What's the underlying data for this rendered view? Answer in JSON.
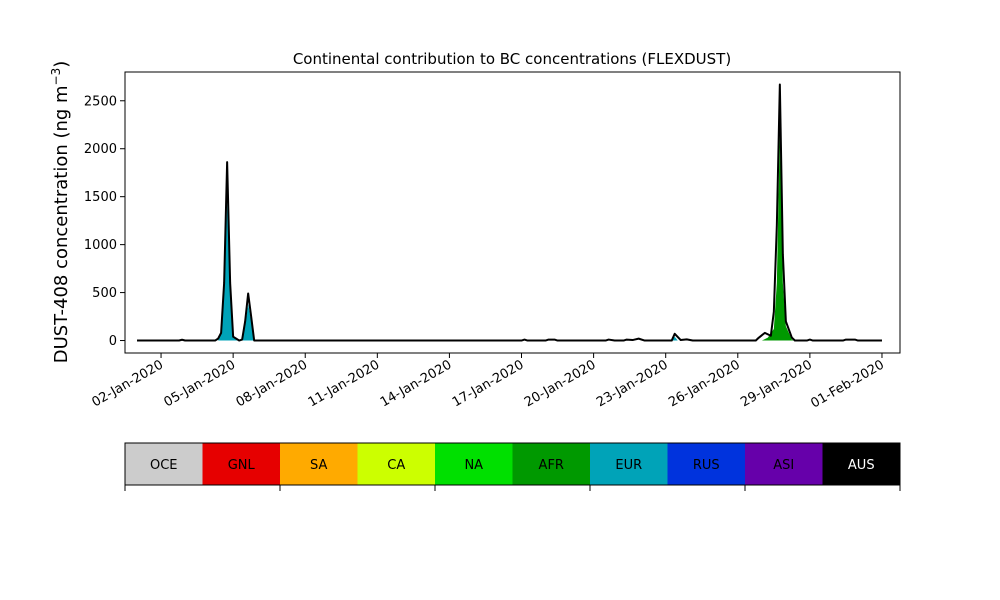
{
  "chart_data": {
    "type": "area",
    "title": "Continental contribution to BC concentrations (FLEXDUST)",
    "ylabel": "DUST-408 concentration (ng m",
    "ylabel_sup": "−3",
    "ylabel_end": ")",
    "xlabel": "",
    "ylim": [
      -130,
      2800
    ],
    "xlim": [
      "2019-12-31T12:00",
      "2020-02-01T18:00"
    ],
    "yticks": [
      0,
      500,
      1000,
      1500,
      2000,
      2500
    ],
    "xticks": [
      {
        "date": "2020-01-02",
        "label": "02-Jan-2020"
      },
      {
        "date": "2020-01-05",
        "label": "05-Jan-2020"
      },
      {
        "date": "2020-01-08",
        "label": "08-Jan-2020"
      },
      {
        "date": "2020-01-11",
        "label": "11-Jan-2020"
      },
      {
        "date": "2020-01-14",
        "label": "14-Jan-2020"
      },
      {
        "date": "2020-01-17",
        "label": "17-Jan-2020"
      },
      {
        "date": "2020-01-20",
        "label": "20-Jan-2020"
      },
      {
        "date": "2020-01-23",
        "label": "23-Jan-2020"
      },
      {
        "date": "2020-01-26",
        "label": "26-Jan-2020"
      },
      {
        "date": "2020-01-29",
        "label": "29-Jan-2020"
      },
      {
        "date": "2020-02-01",
        "label": "01-Feb-2020"
      }
    ],
    "legend": [
      {
        "name": "OCE",
        "color": "#cccccc",
        "text_color": "#000000"
      },
      {
        "name": "GNL",
        "color": "#e60000",
        "text_color": "#000000"
      },
      {
        "name": "SA",
        "color": "#ffaa00",
        "text_color": "#000000"
      },
      {
        "name": "CA",
        "color": "#ccff00",
        "text_color": "#000000"
      },
      {
        "name": "NA",
        "color": "#00e000",
        "text_color": "#000000"
      },
      {
        "name": "AFR",
        "color": "#009900",
        "text_color": "#000000"
      },
      {
        "name": "EUR",
        "color": "#00a3b8",
        "text_color": "#000000"
      },
      {
        "name": "RUS",
        "color": "#0033dd",
        "text_color": "#000000"
      },
      {
        "name": "ASI",
        "color": "#6600aa",
        "text_color": "#000000"
      },
      {
        "name": "AUS",
        "color": "#000000",
        "text_color": "#ffffff"
      }
    ],
    "series": [
      {
        "name": "EUR",
        "color": "#00a3b8",
        "points": [
          [
            "2020-01-01T00:00",
            0
          ],
          [
            "2020-01-04T09:00",
            0
          ],
          [
            "2020-01-04T12:00",
            80
          ],
          [
            "2020-01-04T15:00",
            500
          ],
          [
            "2020-01-04T18:00",
            1450
          ],
          [
            "2020-01-04T21:00",
            550
          ],
          [
            "2020-01-05T00:00",
            30
          ],
          [
            "2020-01-05T09:00",
            0
          ],
          [
            "2020-01-05T12:00",
            150
          ],
          [
            "2020-01-05T15:00",
            380
          ],
          [
            "2020-01-05T18:00",
            200
          ],
          [
            "2020-01-05T21:00",
            0
          ],
          [
            "2020-01-23T06:00",
            0
          ],
          [
            "2020-01-23T09:00",
            40
          ],
          [
            "2020-01-23T12:00",
            0
          ],
          [
            "2020-02-01T00:00",
            0
          ]
        ]
      },
      {
        "name": "AFR",
        "color": "#009900",
        "points": [
          [
            "2020-01-01T00:00",
            0
          ],
          [
            "2020-01-27T00:00",
            0
          ],
          [
            "2020-01-27T06:00",
            30
          ],
          [
            "2020-01-27T12:00",
            120
          ],
          [
            "2020-01-27T15:00",
            600
          ],
          [
            "2020-01-27T18:00",
            2200
          ],
          [
            "2020-01-27T21:00",
            600
          ],
          [
            "2020-01-28T00:00",
            150
          ],
          [
            "2020-01-28T06:00",
            10
          ],
          [
            "2020-01-28T09:00",
            0
          ],
          [
            "2020-02-01T00:00",
            0
          ]
        ]
      }
    ],
    "total": [
      [
        "2020-01-01T00:00",
        0
      ],
      [
        "2020-01-02T18:00",
        0
      ],
      [
        "2020-01-02T21:00",
        8
      ],
      [
        "2020-01-03T00:00",
        0
      ],
      [
        "2020-01-04T06:00",
        0
      ],
      [
        "2020-01-04T09:00",
        20
      ],
      [
        "2020-01-04T12:00",
        80
      ],
      [
        "2020-01-04T15:00",
        600
      ],
      [
        "2020-01-04T18:00",
        1860
      ],
      [
        "2020-01-04T21:00",
        600
      ],
      [
        "2020-01-05T00:00",
        40
      ],
      [
        "2020-01-05T06:00",
        0
      ],
      [
        "2020-01-05T09:00",
        10
      ],
      [
        "2020-01-05T12:00",
        200
      ],
      [
        "2020-01-05T15:00",
        490
      ],
      [
        "2020-01-05T18:00",
        250
      ],
      [
        "2020-01-05T21:00",
        0
      ],
      [
        "2020-01-17T00:00",
        0
      ],
      [
        "2020-01-17T03:00",
        10
      ],
      [
        "2020-01-17T06:00",
        0
      ],
      [
        "2020-01-18T00:00",
        0
      ],
      [
        "2020-01-18T03:00",
        10
      ],
      [
        "2020-01-18T09:00",
        10
      ],
      [
        "2020-01-18T12:00",
        0
      ],
      [
        "2020-01-20T12:00",
        0
      ],
      [
        "2020-01-20T15:00",
        10
      ],
      [
        "2020-01-20T21:00",
        0
      ],
      [
        "2020-01-21T06:00",
        0
      ],
      [
        "2020-01-21T09:00",
        10
      ],
      [
        "2020-01-21T15:00",
        5
      ],
      [
        "2020-01-21T21:00",
        20
      ],
      [
        "2020-01-22T03:00",
        0
      ],
      [
        "2020-01-23T06:00",
        0
      ],
      [
        "2020-01-23T09:00",
        70
      ],
      [
        "2020-01-23T15:00",
        5
      ],
      [
        "2020-01-23T21:00",
        12
      ],
      [
        "2020-01-24T03:00",
        0
      ],
      [
        "2020-01-26T18:00",
        0
      ],
      [
        "2020-01-26T21:00",
        30
      ],
      [
        "2020-01-27T03:00",
        80
      ],
      [
        "2020-01-27T09:00",
        50
      ],
      [
        "2020-01-27T12:00",
        300
      ],
      [
        "2020-01-27T15:00",
        1200
      ],
      [
        "2020-01-27T18:00",
        2670
      ],
      [
        "2020-01-27T21:00",
        900
      ],
      [
        "2020-01-28T00:00",
        200
      ],
      [
        "2020-01-28T06:00",
        30
      ],
      [
        "2020-01-28T09:00",
        0
      ],
      [
        "2020-01-28T21:00",
        0
      ],
      [
        "2020-01-29T00:00",
        10
      ],
      [
        "2020-01-29T03:00",
        0
      ],
      [
        "2020-01-30T09:00",
        0
      ],
      [
        "2020-01-30T12:00",
        10
      ],
      [
        "2020-01-30T21:00",
        10
      ],
      [
        "2020-01-31T00:00",
        0
      ],
      [
        "2020-02-01T00:00",
        0
      ]
    ]
  }
}
